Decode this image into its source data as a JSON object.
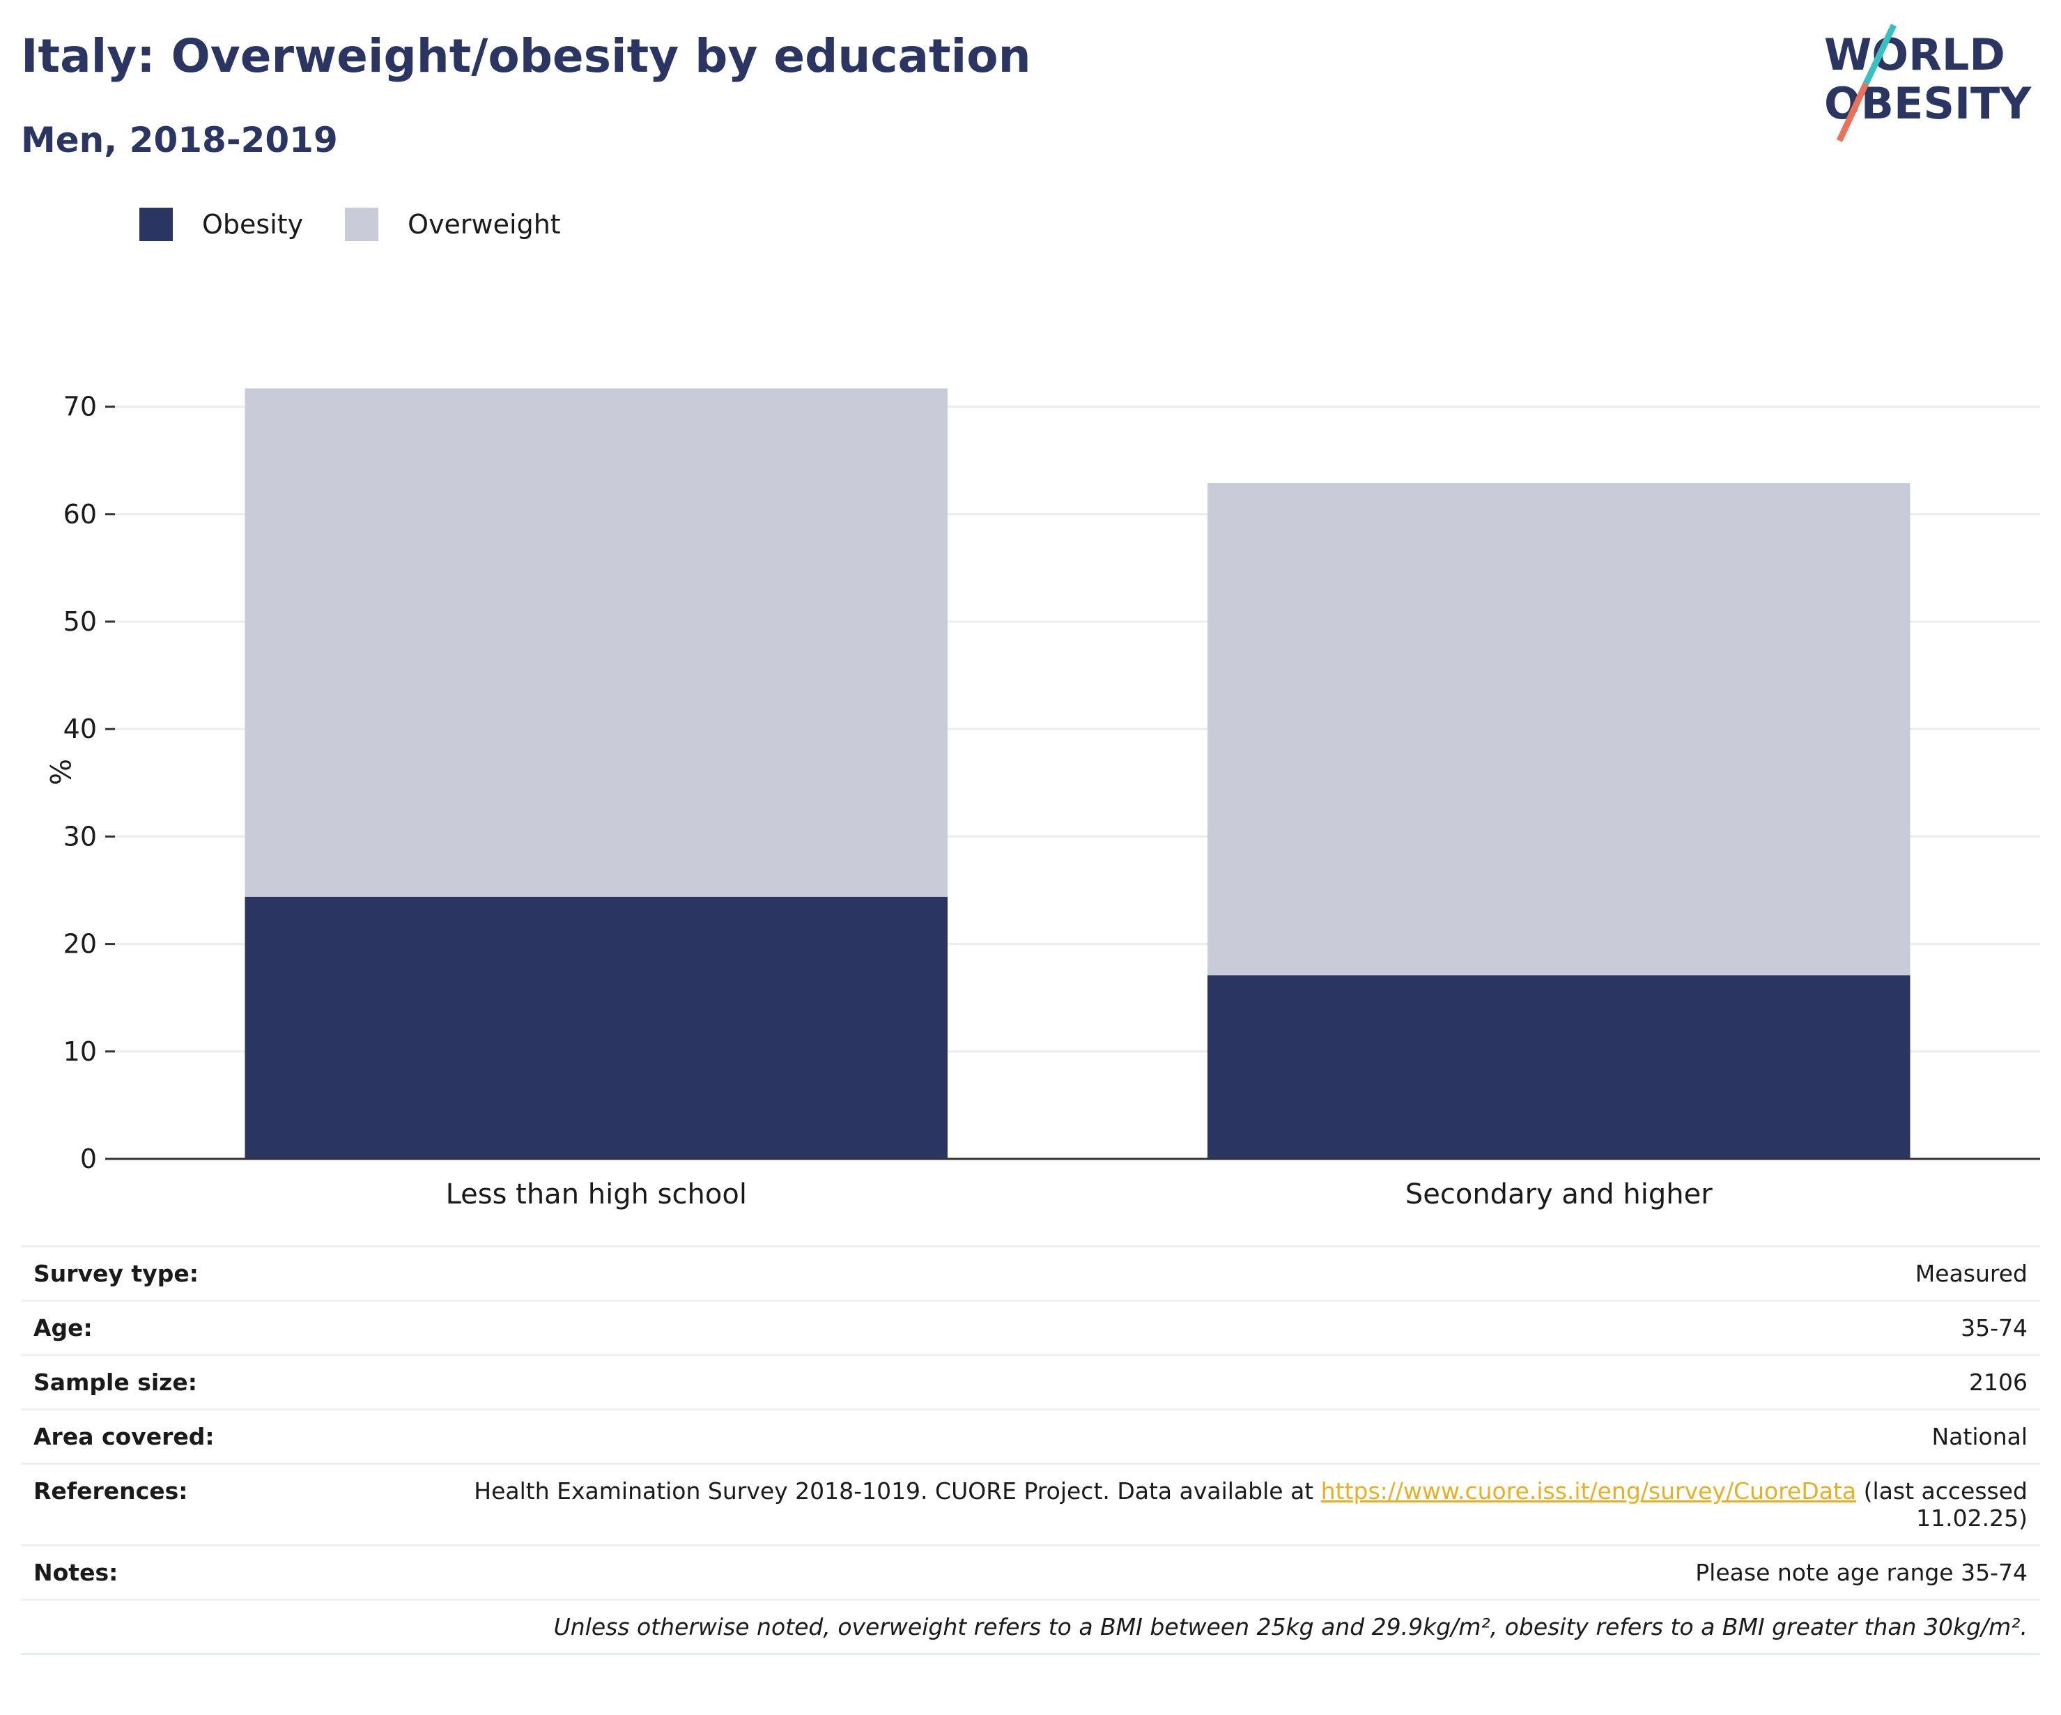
{
  "header": {
    "title": "Italy: Overweight/obesity by education",
    "subtitle": "Men, 2018-2019"
  },
  "logo": {
    "line1": "WORLD",
    "line2": "OBESITY"
  },
  "colors": {
    "obesity": "#2a3562",
    "overweight": "#c9ccd8",
    "title": "#2a3562",
    "link": "#e3b028",
    "logo_teal": "#3bbfc0",
    "logo_coral": "#e8725c"
  },
  "legend": {
    "items": [
      {
        "label": "Obesity",
        "color": "#2a3562"
      },
      {
        "label": "Overweight",
        "color": "#c9ccd8"
      }
    ]
  },
  "chart_data": {
    "type": "bar",
    "stacked": true,
    "categories": [
      "Less than high school",
      "Secondary and higher"
    ],
    "series": [
      {
        "name": "Obesity",
        "values": [
          24.4,
          17.1
        ]
      },
      {
        "name": "Overweight",
        "values": [
          47.3,
          45.8
        ]
      }
    ],
    "ylabel": "%",
    "ylim": [
      0,
      72
    ],
    "yticks": [
      0,
      10,
      20,
      30,
      40,
      50,
      60,
      70
    ],
    "grid": true,
    "legend_position": "top-left"
  },
  "info": {
    "survey_type_label": "Survey type:",
    "survey_type": "Measured",
    "age_label": "Age:",
    "age": "35-74",
    "sample_size_label": "Sample size:",
    "sample_size": "2106",
    "area_label": "Area covered:",
    "area": "National",
    "references_label": "References:",
    "references_pre": "Health Examination Survey 2018-1019. CUORE Project. Data available at",
    "references_link": "https://www.cuore.iss.it/eng/survey/CuoreData",
    "references_post": "(last accessed",
    "references_date": "11.02.25)",
    "notes_label": "Notes:",
    "notes": "Please note age range 35-74",
    "footnote": "Unless otherwise noted, overweight refers to a BMI between 25kg and 29.9kg/m², obesity refers to a BMI greater than 30kg/m²."
  }
}
